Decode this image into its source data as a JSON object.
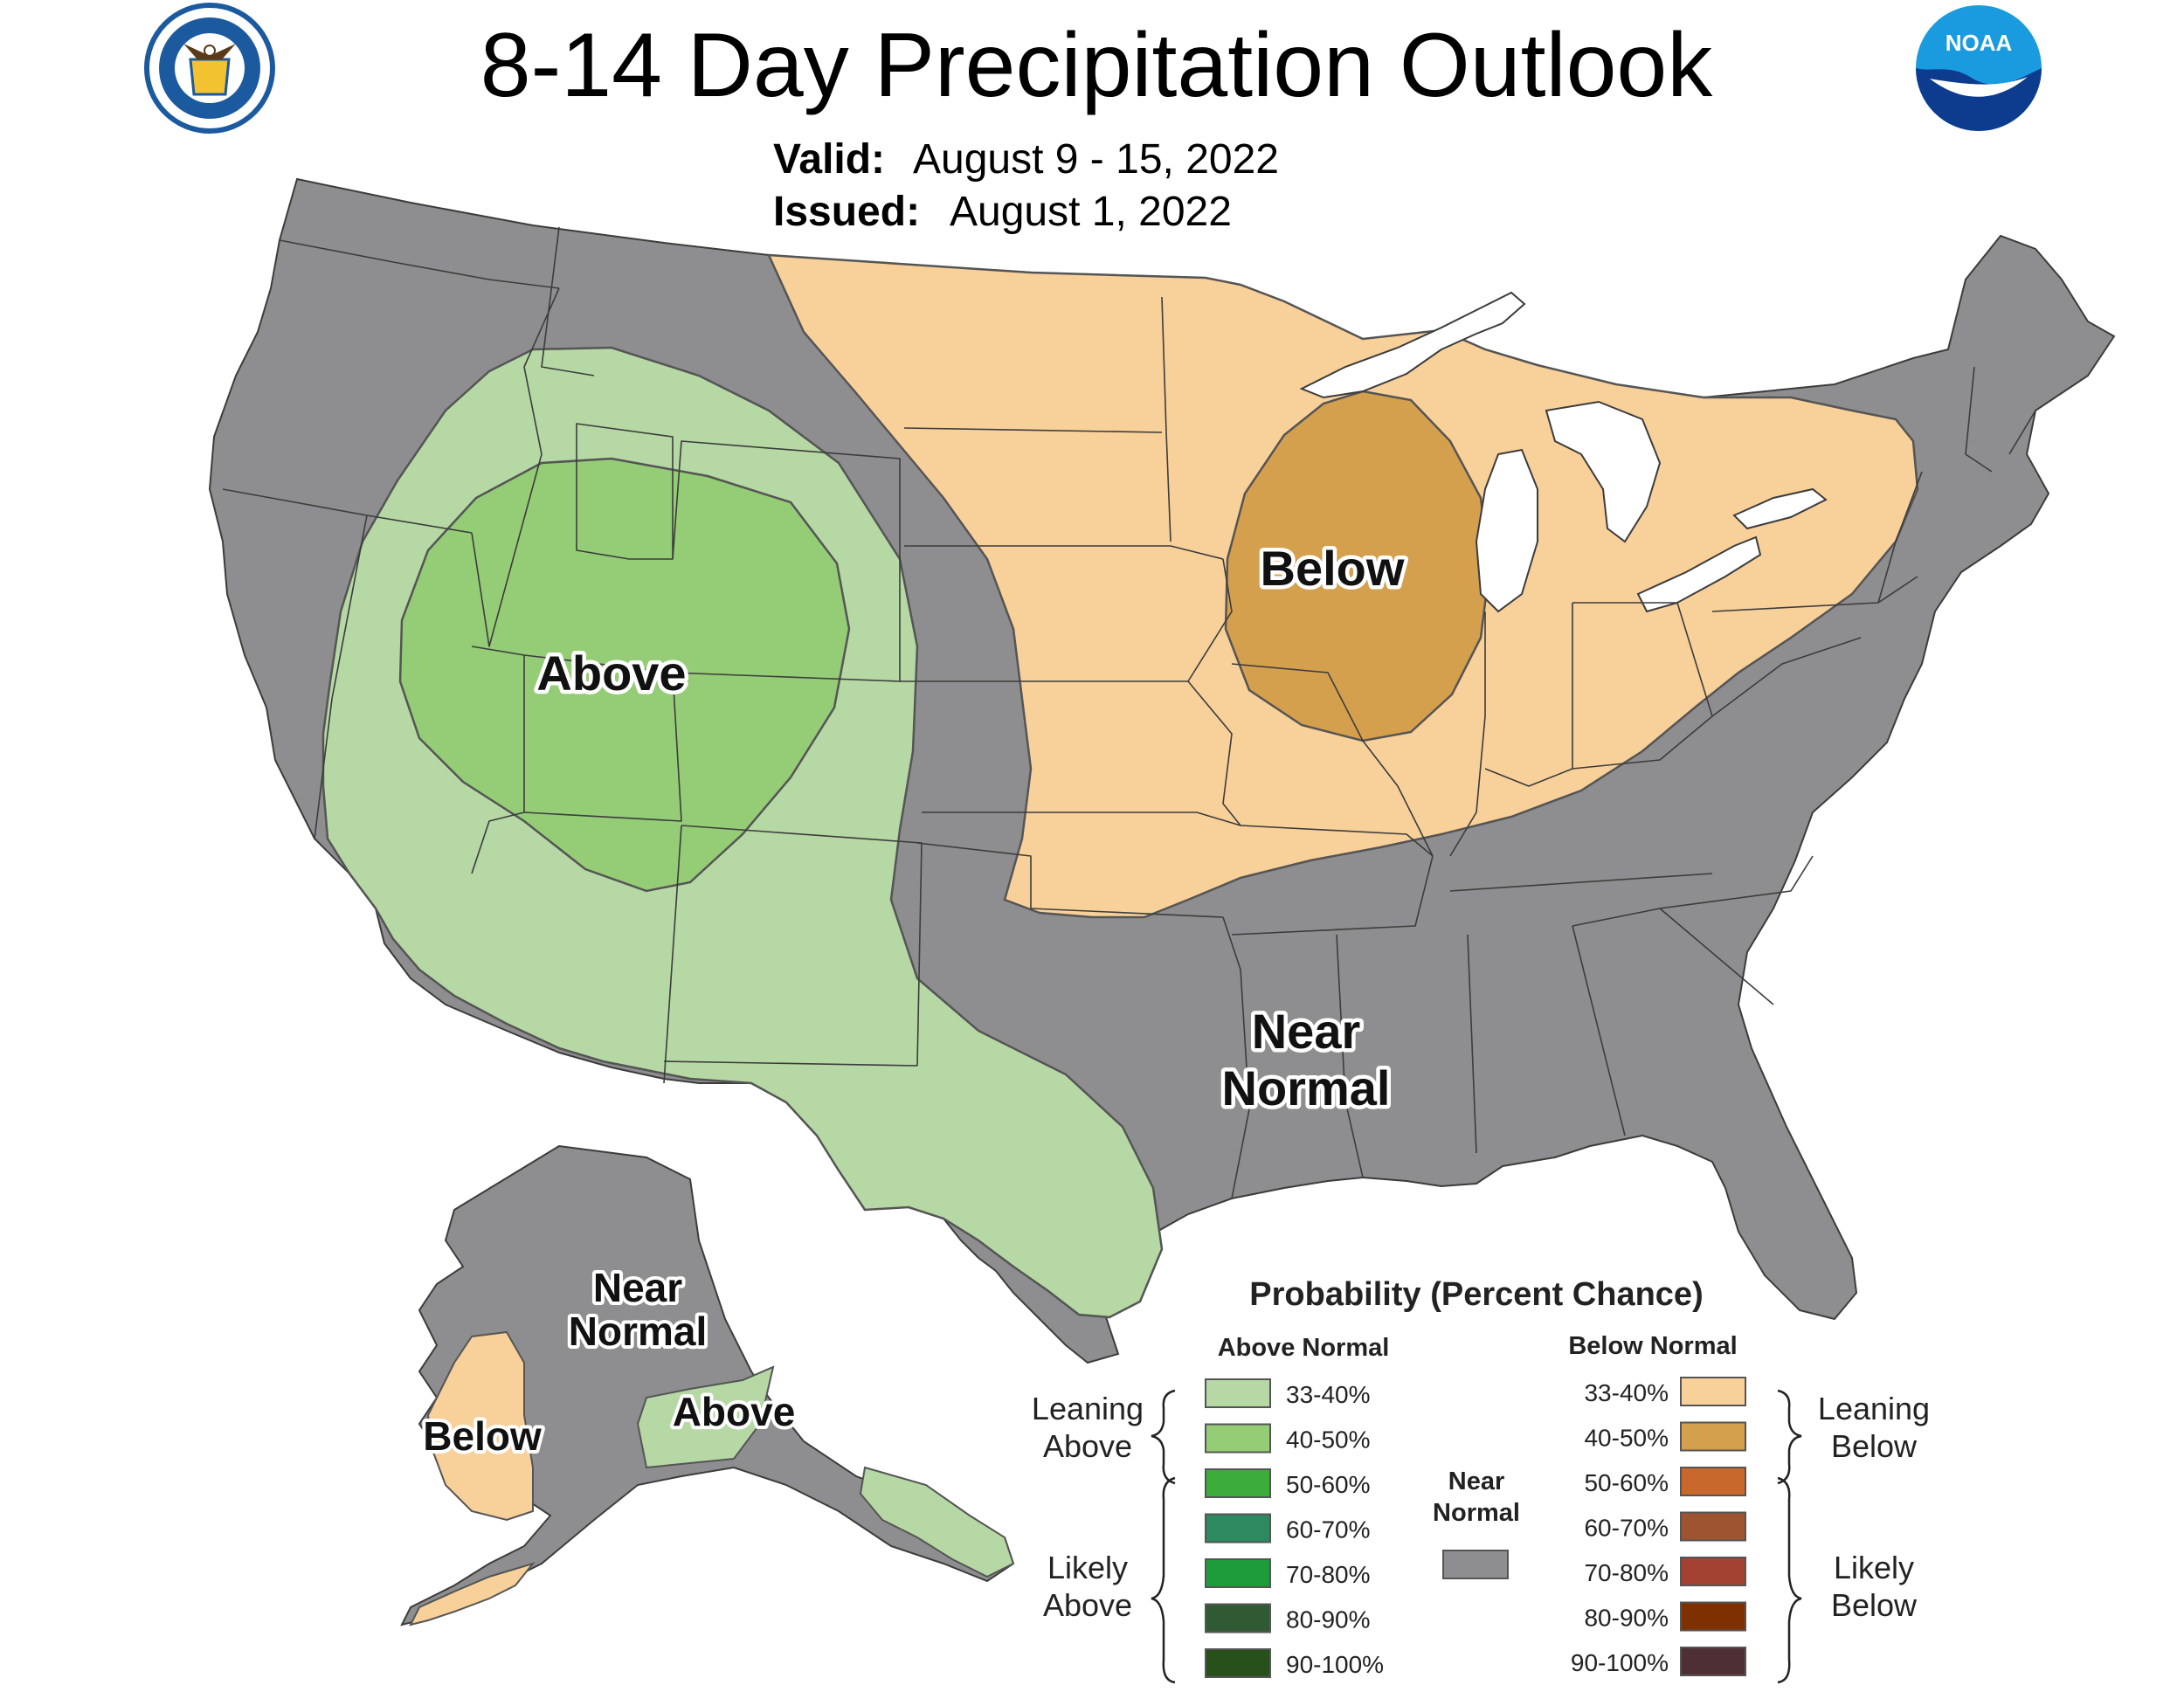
{
  "header": {
    "title": "8-14 Day Precipitation Outlook",
    "valid_label": "Valid:",
    "valid_value": "August 9 - 15, 2022",
    "issued_label": "Issued:",
    "issued_value": "August 1, 2022"
  },
  "logos": {
    "left": {
      "name": "department-of-commerce-seal",
      "ring_text": "DEPARTMENT OF COMMERCE • UNITED STATES OF AMERICA"
    },
    "right": {
      "name": "noaa-logo",
      "text": "NOAA"
    }
  },
  "map_labels": {
    "conus_above": "Above",
    "conus_below": "Below",
    "conus_near_1": "Near",
    "conus_near_2": "Normal",
    "ak_near_1": "Near",
    "ak_near_2": "Normal",
    "ak_below": "Below",
    "ak_above": "Above"
  },
  "colors": {
    "near_normal": "#8e8e90",
    "above_33_40": "#b6d8a4",
    "above_40_50": "#95cc76",
    "below_33_40": "#f8d09a",
    "below_40_50": "#d4a04e",
    "water": "#ffffff",
    "boundary": "#3c3c3c"
  },
  "legend": {
    "title": "Probability (Percent Chance)",
    "above_header": "Above Normal",
    "below_header": "Below Normal",
    "near_label_1": "Near",
    "near_label_2": "Normal",
    "near_color": "#8e8e90",
    "leaning_above_1": "Leaning",
    "leaning_above_2": "Above",
    "likely_above_1": "Likely",
    "likely_above_2": "Above",
    "leaning_below_1": "Leaning",
    "leaning_below_2": "Below",
    "likely_below_1": "Likely",
    "likely_below_2": "Below",
    "above": [
      {
        "label": "33-40%",
        "color": "#b6d8a4"
      },
      {
        "label": "40-50%",
        "color": "#95cc76"
      },
      {
        "label": "50-60%",
        "color": "#3aad3a"
      },
      {
        "label": "60-70%",
        "color": "#2d8a60"
      },
      {
        "label": "70-80%",
        "color": "#1f9c3a"
      },
      {
        "label": "80-90%",
        "color": "#2f5a33"
      },
      {
        "label": "90-100%",
        "color": "#27501b"
      }
    ],
    "below": [
      {
        "label": "33-40%",
        "color": "#f8d09a"
      },
      {
        "label": "40-50%",
        "color": "#d4a04e"
      },
      {
        "label": "50-60%",
        "color": "#c8682c"
      },
      {
        "label": "60-70%",
        "color": "#9e5430"
      },
      {
        "label": "70-80%",
        "color": "#a34232"
      },
      {
        "label": "80-90%",
        "color": "#7e3000"
      },
      {
        "label": "90-100%",
        "color": "#4e3034"
      }
    ]
  }
}
